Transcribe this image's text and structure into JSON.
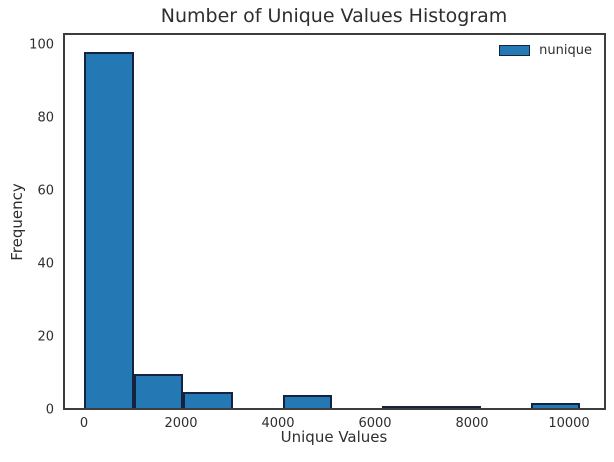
{
  "chart_data": {
    "type": "bar",
    "subtype": "histogram",
    "title": "Number of Unique Values Histogram",
    "xlabel": "Unique Values",
    "ylabel": "Frequency",
    "series": [
      {
        "name": "nunique",
        "bin_edges": [
          0,
          1023,
          2046,
          3069,
          4092,
          5115,
          6138,
          7161,
          8184,
          9207,
          10230
        ],
        "counts": [
          98,
          10,
          5,
          0,
          4,
          0,
          1,
          1,
          0,
          2
        ]
      }
    ],
    "x_ticks": [
      0,
      2000,
      4000,
      6000,
      8000,
      10000
    ],
    "y_ticks": [
      0,
      20,
      40,
      60,
      80,
      100
    ],
    "xlim": [
      -433,
      10763
    ],
    "ylim": [
      0,
      103.3
    ],
    "grid": false,
    "legend": {
      "label": "nunique",
      "position": "upper-right"
    }
  },
  "colors": {
    "background": "#ffffff",
    "bar_fill": "#2478b4",
    "bar_edge": "#16233f",
    "spine": "#3d3d3d",
    "text": "#2e2e2e"
  }
}
